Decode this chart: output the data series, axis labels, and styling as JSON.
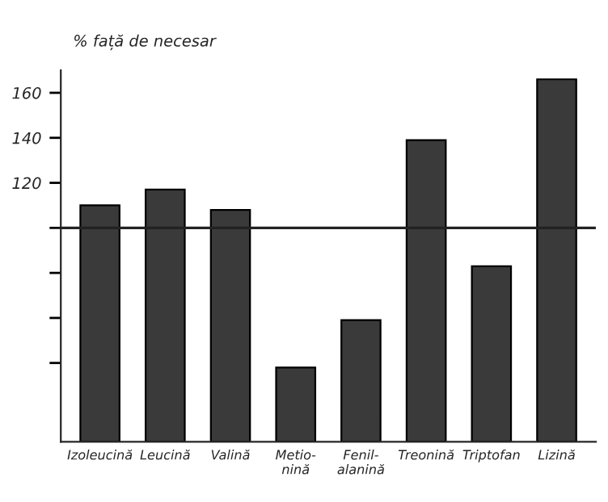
{
  "chart_data": {
    "type": "bar",
    "ylabel": "% față de necesar",
    "categories": [
      "Izoleucină",
      "Leucină",
      "Valină",
      "Metio-\nnină",
      "Fenil-\nalanină",
      "Treonină",
      "Triptofan",
      "Lizină"
    ],
    "values": [
      110,
      117,
      108,
      38,
      59,
      139,
      83,
      166
    ],
    "color": "#3a3a3a",
    "ylim": [
      5,
      170
    ],
    "yticks": [
      {
        "value": 40,
        "label": null
      },
      {
        "value": 60,
        "label": null
      },
      {
        "value": 80,
        "label": null
      },
      {
        "value": 100,
        "label": null
      },
      120,
      140,
      160
    ],
    "ref_lines": [
      {
        "axis": "y",
        "value": 100,
        "label": null,
        "color": "#222222"
      }
    ],
    "grid": false
  }
}
